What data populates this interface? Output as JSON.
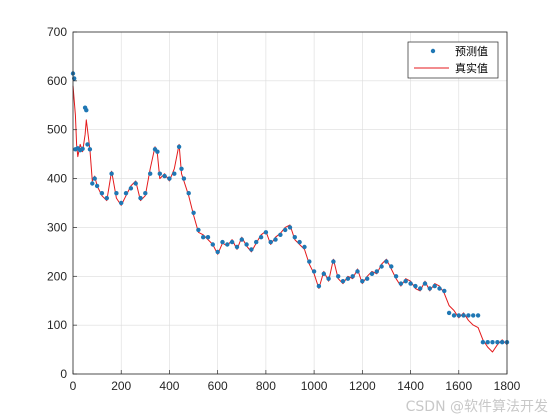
{
  "chart_data": {
    "type": "line",
    "xlim": [
      0,
      1800
    ],
    "ylim": [
      0,
      700
    ],
    "xticks": [
      0,
      200,
      400,
      600,
      800,
      1000,
      1200,
      1400,
      1600,
      1800
    ],
    "yticks": [
      0,
      100,
      200,
      300,
      400,
      500,
      600,
      700
    ],
    "grid": true,
    "legend_position": "top-right",
    "series": [
      {
        "name": "预测值",
        "style": "markers",
        "color": "#1f77b4",
        "x": [
          0,
          5,
          10,
          20,
          30,
          40,
          50,
          55,
          60,
          70,
          80,
          90,
          100,
          120,
          140,
          160,
          180,
          200,
          220,
          240,
          260,
          280,
          300,
          320,
          340,
          350,
          360,
          380,
          400,
          420,
          440,
          450,
          460,
          480,
          500,
          520,
          540,
          560,
          580,
          600,
          620,
          640,
          660,
          680,
          700,
          720,
          740,
          760,
          780,
          800,
          820,
          840,
          860,
          880,
          900,
          920,
          940,
          960,
          980,
          1000,
          1020,
          1040,
          1060,
          1080,
          1100,
          1120,
          1140,
          1160,
          1180,
          1200,
          1220,
          1240,
          1260,
          1280,
          1300,
          1320,
          1340,
          1360,
          1380,
          1400,
          1420,
          1440,
          1460,
          1480,
          1500,
          1520,
          1540,
          1560,
          1580,
          1600,
          1620,
          1640,
          1660,
          1680,
          1700,
          1720,
          1740,
          1760,
          1780,
          1800
        ],
        "y": [
          615,
          605,
          460,
          462,
          458,
          461,
          545,
          540,
          470,
          460,
          390,
          400,
          385,
          370,
          360,
          410,
          370,
          350,
          370,
          380,
          390,
          360,
          370,
          410,
          460,
          455,
          410,
          405,
          400,
          410,
          465,
          420,
          400,
          370,
          330,
          295,
          280,
          280,
          265,
          250,
          270,
          265,
          270,
          260,
          275,
          265,
          255,
          270,
          280,
          290,
          270,
          275,
          285,
          295,
          300,
          280,
          270,
          260,
          230,
          210,
          180,
          205,
          195,
          230,
          200,
          190,
          195,
          200,
          210,
          190,
          195,
          205,
          210,
          220,
          230,
          220,
          200,
          185,
          190,
          185,
          180,
          175,
          185,
          175,
          180,
          175,
          170,
          125,
          120,
          120,
          120,
          120,
          120,
          120,
          65,
          65,
          65,
          65,
          65,
          65
        ]
      },
      {
        "name": "真实值",
        "style": "line",
        "color": "#e41a1c",
        "x": [
          0,
          5,
          10,
          15,
          20,
          30,
          40,
          50,
          55,
          60,
          65,
          70,
          80,
          90,
          100,
          120,
          140,
          160,
          180,
          200,
          220,
          240,
          260,
          280,
          300,
          320,
          340,
          350,
          360,
          380,
          400,
          420,
          440,
          450,
          460,
          480,
          500,
          520,
          540,
          560,
          580,
          600,
          620,
          640,
          660,
          680,
          700,
          720,
          740,
          760,
          780,
          800,
          820,
          840,
          860,
          880,
          900,
          920,
          940,
          960,
          980,
          1000,
          1020,
          1040,
          1060,
          1080,
          1100,
          1120,
          1140,
          1160,
          1180,
          1200,
          1220,
          1240,
          1260,
          1280,
          1300,
          1320,
          1340,
          1360,
          1380,
          1400,
          1420,
          1440,
          1460,
          1480,
          1500,
          1520,
          1540,
          1560,
          1580,
          1600,
          1620,
          1640,
          1660,
          1680,
          1700,
          1720,
          1740,
          1760,
          1780,
          1800
        ],
        "y": [
          590,
          560,
          530,
          470,
          445,
          470,
          455,
          490,
          520,
          500,
          480,
          460,
          395,
          405,
          385,
          365,
          355,
          415,
          360,
          345,
          365,
          385,
          395,
          355,
          365,
          420,
          465,
          450,
          400,
          410,
          395,
          420,
          470,
          410,
          395,
          365,
          325,
          290,
          285,
          275,
          265,
          245,
          268,
          262,
          275,
          255,
          280,
          262,
          250,
          268,
          285,
          292,
          265,
          280,
          288,
          300,
          305,
          275,
          265,
          255,
          225,
          205,
          175,
          210,
          190,
          235,
          195,
          185,
          200,
          195,
          215,
          185,
          200,
          210,
          205,
          225,
          235,
          215,
          195,
          180,
          195,
          190,
          175,
          170,
          190,
          170,
          185,
          180,
          165,
          140,
          130,
          115,
          125,
          110,
          100,
          95,
          70,
          55,
          45,
          60,
          70,
          60
        ]
      }
    ]
  },
  "watermark": "CSDN @软件算法开发"
}
